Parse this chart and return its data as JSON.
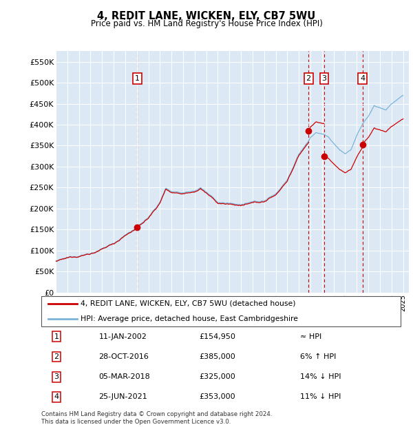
{
  "title": "4, REDIT LANE, WICKEN, ELY, CB7 5WU",
  "subtitle": "Price paid vs. HM Land Registry's House Price Index (HPI)",
  "background_color": "#ffffff",
  "plot_bg_color": "#dce9f5",
  "ylim": [
    0,
    575000
  ],
  "yticks": [
    0,
    50000,
    100000,
    150000,
    200000,
    250000,
    300000,
    350000,
    400000,
    450000,
    500000,
    550000
  ],
  "ytick_labels": [
    "£0",
    "£50K",
    "£100K",
    "£150K",
    "£200K",
    "£250K",
    "£300K",
    "£350K",
    "£400K",
    "£450K",
    "£500K",
    "£550K"
  ],
  "hpi_color": "#7ab4d8",
  "sale_color": "#cc0000",
  "vline_color": "#cc0000",
  "sale_dates_num": [
    2002.03,
    2016.83,
    2018.18,
    2021.49
  ],
  "sale_prices": [
    154950,
    385000,
    325000,
    353000
  ],
  "sale_labels": [
    "1",
    "2",
    "3",
    "4"
  ],
  "footer_text": "Contains HM Land Registry data © Crown copyright and database right 2024.\nThis data is licensed under the Open Government Licence v3.0.",
  "legend_label_sale": "4, REDIT LANE, WICKEN, ELY, CB7 5WU (detached house)",
  "legend_label_hpi": "HPI: Average price, detached house, East Cambridgeshire",
  "table_rows": [
    [
      "1",
      "11-JAN-2002",
      "£154,950",
      "≈ HPI"
    ],
    [
      "2",
      "28-OCT-2016",
      "£385,000",
      "6% ↑ HPI"
    ],
    [
      "3",
      "05-MAR-2018",
      "£325,000",
      "14% ↓ HPI"
    ],
    [
      "4",
      "25-JUN-2021",
      "£353,000",
      "11% ↓ HPI"
    ]
  ]
}
